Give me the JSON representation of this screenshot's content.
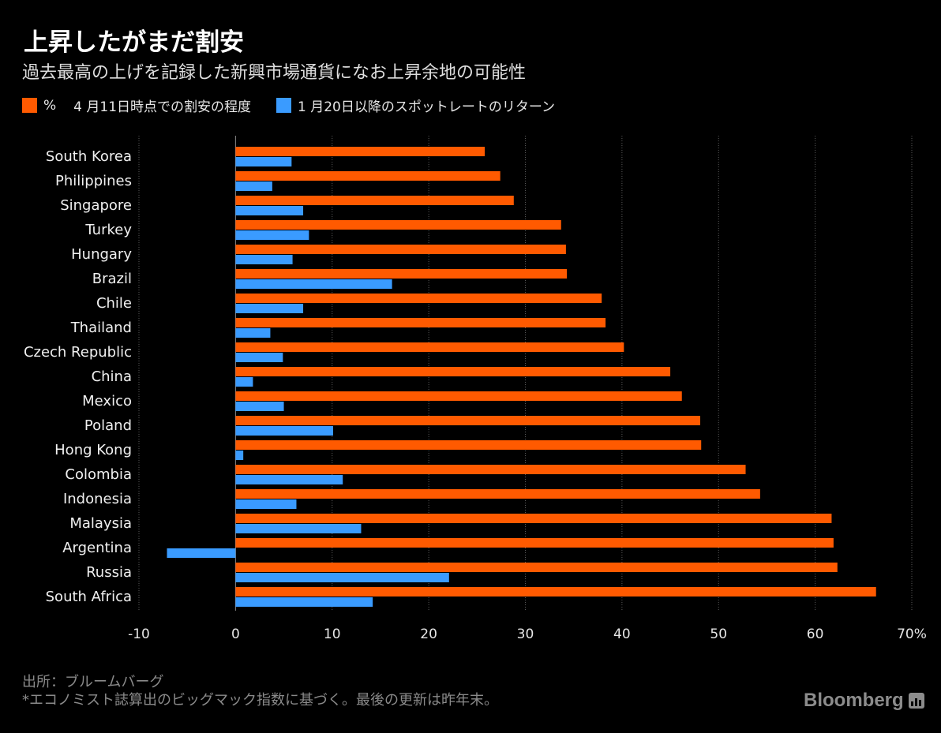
{
  "header": {
    "title": "上昇したがまだ割安",
    "subtitle": "過去最高の上げを記録した新興市場通貨になお上昇余地の可能性"
  },
  "legend": {
    "unit": "%",
    "items": [
      {
        "label": "4 月11日時点での割安の程度",
        "color": "#ff5a00"
      },
      {
        "label": "1 月20日以降のスポットレートのリターン",
        "color": "#3a9bff"
      }
    ]
  },
  "chart_data": {
    "type": "bar",
    "orientation": "horizontal",
    "categories": [
      "South Korea",
      "Philippines",
      "Singapore",
      "Turkey",
      "Hungary",
      "Brazil",
      "Chile",
      "Thailand",
      "Czech Republic",
      "China",
      "Mexico",
      "Poland",
      "Hong Kong",
      "Colombia",
      "Indonesia",
      "Malaysia",
      "Argentina",
      "Russia",
      "South Africa"
    ],
    "series": [
      {
        "name": "4 月11日時点での割安の程度",
        "color": "#ff5a00",
        "values": [
          25.8,
          27.4,
          28.8,
          33.7,
          34.2,
          34.3,
          37.9,
          38.3,
          40.2,
          45.0,
          46.2,
          48.1,
          48.2,
          52.8,
          54.3,
          61.7,
          61.9,
          62.3,
          66.3
        ]
      },
      {
        "name": "1 月20日以降のスポットレートのリターン",
        "color": "#3a9bff",
        "values": [
          5.8,
          3.8,
          7.0,
          7.6,
          5.9,
          16.2,
          7.0,
          3.6,
          4.9,
          1.8,
          5.0,
          10.1,
          0.8,
          11.1,
          6.3,
          13.0,
          -7.1,
          22.1,
          14.2
        ]
      }
    ],
    "xlim": [
      -10,
      70
    ],
    "xticks": [
      -10,
      0,
      10,
      20,
      30,
      40,
      50,
      60,
      70
    ],
    "xtick_labels": [
      "-10",
      "0",
      "10",
      "20",
      "30",
      "40",
      "50",
      "60",
      "70%"
    ],
    "grid": "vertical-dotted",
    "legend_position": "top-left"
  },
  "footer": {
    "source": "出所：ブルームバーグ",
    "note": "*エコノミスト誌算出のビッグマック指数に基づく。最後の更新は昨年末。"
  },
  "brand": {
    "name": "Bloomberg"
  }
}
